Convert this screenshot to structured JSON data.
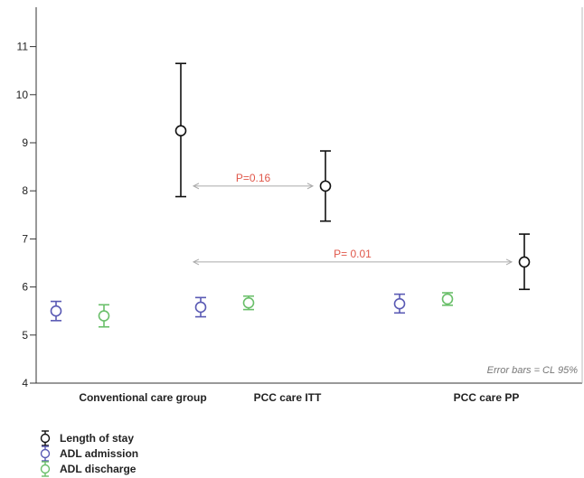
{
  "chart_data": {
    "type": "scatter",
    "categories": [
      "Conventional care group",
      "PCC care  ITT",
      "PCC care PP"
    ],
    "ylim": [
      4,
      11.5
    ],
    "yticks": [
      4,
      5,
      6,
      7,
      8,
      9,
      10,
      11
    ],
    "grid": false,
    "legend_position": "bottom-left",
    "series": [
      {
        "name": "Length of stay",
        "color": "#111111",
        "mean": [
          9.25,
          8.1,
          6.52
        ],
        "lower": [
          7.88,
          7.37,
          5.95
        ],
        "upper": [
          10.65,
          8.83,
          7.1
        ]
      },
      {
        "name": "ADL admission",
        "color": "#5a5ab4",
        "mean": [
          5.5,
          5.58,
          5.65
        ],
        "lower": [
          5.3,
          5.38,
          5.46
        ],
        "upper": [
          5.7,
          5.78,
          5.85
        ]
      },
      {
        "name": "ADL discharge",
        "color": "#6abf6a",
        "mean": [
          5.4,
          5.67,
          5.75
        ],
        "lower": [
          5.17,
          5.53,
          5.62
        ],
        "upper": [
          5.63,
          5.81,
          5.88
        ]
      }
    ],
    "annotations": [
      {
        "text": "P=0.16",
        "from_category": 0,
        "to_category": 1,
        "y": 8.1
      },
      {
        "text": "P= 0.01",
        "from_category": 0,
        "to_category": 2,
        "y": 6.52
      }
    ],
    "note": "Error bars = CL 95%",
    "annotation_color": "#e0574a",
    "arrow_color": "#aaaaaa"
  }
}
